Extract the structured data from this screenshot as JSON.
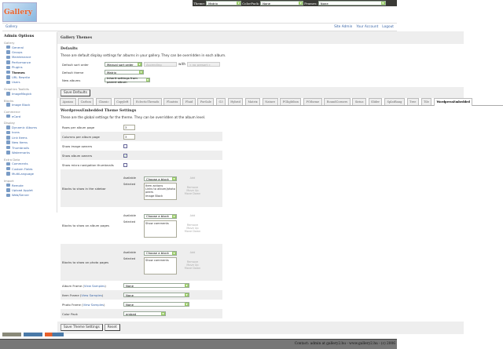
{
  "topbar": {
    "theme_label": "Theme:",
    "theme_value": "Matrix",
    "colorpack_label": "ColorPack:",
    "colorpack_value": "None",
    "frames_label": "Frames:",
    "frames_value": "None"
  },
  "logo": "Gallery",
  "nav": {
    "breadcrumb": "Gallery",
    "site_admin": "Site Admin",
    "your_account": "Your Account",
    "logout": "Logout"
  },
  "sidebar": {
    "title": "Admin Options",
    "groups": [
      {
        "label": "Gallery",
        "items": [
          "General",
          "Groups",
          "Maintenance",
          "Performance",
          "Plugins",
          "Themes",
          "URL Rewrite",
          "Users"
        ]
      },
      {
        "label": "Graphics Toolkits",
        "items": [
          "ImageMagick"
        ]
      },
      {
        "label": "Blocks",
        "items": [
          "Image Block"
        ]
      },
      {
        "label": "Commerce",
        "items": [
          "eCard"
        ]
      },
      {
        "label": "Display",
        "items": [
          "Dynamic Albums",
          "Icons",
          "Link Items",
          "New Items",
          "Thumbnails",
          "Watermarks"
        ]
      },
      {
        "label": "Extra Data",
        "items": [
          "Comments",
          "Custom Fields",
          "MultiLanguage"
        ]
      },
      {
        "label": "Import",
        "items": [
          "Remote",
          "Upload Applet",
          "Web/Server"
        ]
      }
    ]
  },
  "main": {
    "title": "Gallery Themes",
    "defaults_title": "Defaults",
    "defaults_desc": "These are default display settings for albums in your gallery. They can be overridden in each album.",
    "sort_label": "Default sort order",
    "sort_value": "Manual sort order",
    "sort_dir": "Ascending",
    "with_label": "with",
    "presort": "« no presort »",
    "theme_label": "Default theme",
    "theme_value": "Matrix",
    "new_label": "New albums",
    "new_value": "Inherit settings from parent album",
    "save_defaults": "Save Defaults",
    "tabs": [
      "Ajaxian",
      "Carbon",
      "Classic",
      "Copyleft",
      "EclecticThreads",
      "Floatrix",
      "Fluid",
      "PorSale",
      "G3",
      "Hybrid",
      "Matrix",
      "Nature",
      "PGlightbox",
      "PGtheme",
      "RoundCorners",
      "Sirius",
      "Slider",
      "SplatBang",
      "Tree",
      "Tile",
      "WordpressEmbedded"
    ],
    "active_tab": "WordpressEmbedded",
    "settings_title": "WordpressEmbedded Theme Settings",
    "settings_desc": "These are the global settings for the theme. They can be overridden at the album level.",
    "rows_label": "Rows per album page",
    "rows_value": "3",
    "cols_label": "Columns per album page",
    "cols_value": "3",
    "img_owners": "Show image owners",
    "img_owners_checked": false,
    "alb_owners": "Show album owners",
    "alb_owners_checked": true,
    "micro": "Show micro navigation thumbnails",
    "micro_checked": false,
    "available": "Available",
    "selected": "Selected",
    "choose": "Choose a block",
    "add": "Add",
    "remove": "Remove",
    "move_up": "Move Up",
    "move_down": "Move Down",
    "sidebar_blocks": {
      "label": "Blocks to show in the sidebar",
      "items": [
        "Item actions",
        "Links to album/photo peers",
        "Image Block"
      ]
    },
    "album_blocks": {
      "label": "Blocks to show on album pages",
      "items": [
        "Show comments"
      ]
    },
    "photo_blocks": {
      "label": "Blocks to show on photo pages",
      "items": [
        "Show comments"
      ]
    },
    "view_samples": "View Samples",
    "album_frame": {
      "label": "Album Frame",
      "value": "None"
    },
    "item_frame": {
      "label": "Item Frame",
      "value": "None"
    },
    "photo_frame": {
      "label": "Photo Frame",
      "value": "None"
    },
    "color_pack": {
      "label": "Color Pack",
      "value": "embed"
    },
    "save_theme": "Save Theme Settings",
    "reset": "Reset"
  },
  "footer": "Contact: admin at gallery2.hu - www.gallery2.hu - (c) 2006"
}
